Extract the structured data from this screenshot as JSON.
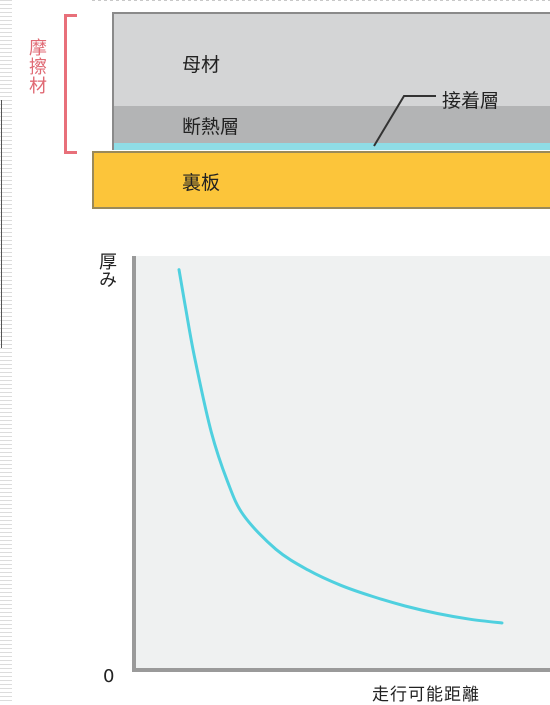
{
  "diagram": {
    "friction_material_label": "摩擦材",
    "layers": {
      "base_material": "母材",
      "insulation_layer": "断熱層",
      "adhesive_layer": "接着層",
      "back_plate": "裏板"
    }
  },
  "chart_data": {
    "type": "line",
    "title": "",
    "xlabel": "走行可能距離",
    "ylabel": "厚み",
    "origin_label": "0",
    "grid": false,
    "series": [
      {
        "values_description": "",
        "x": [
          0.0,
          0.02,
          0.05,
          0.1,
          0.15,
          0.2,
          0.3,
          0.4,
          0.5,
          0.6,
          0.7,
          0.8,
          0.9,
          1.0
        ],
        "y": [
          0.98,
          0.88,
          0.74,
          0.55,
          0.42,
          0.33,
          0.24,
          0.185,
          0.145,
          0.115,
          0.09,
          0.07,
          0.055,
          0.045
        ]
      }
    ],
    "colors": {
      "curve": "#4fd0df",
      "axis": "#9a9a9a",
      "plot_bg": "#eff1f1"
    }
  }
}
